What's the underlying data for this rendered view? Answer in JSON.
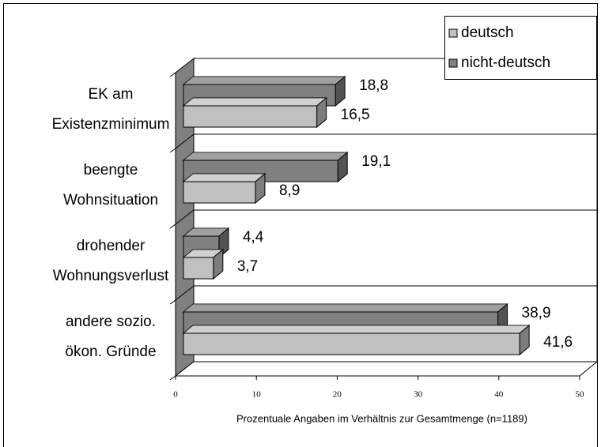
{
  "chart_data": {
    "type": "bar3d_horizontal",
    "categories": [
      [
        "EK am",
        "Existenzminimum"
      ],
      [
        "beengte",
        "Wohnsituation"
      ],
      [
        "drohender",
        "Wohnungsverlust"
      ],
      [
        "andere sozio.",
        "ökon. Gründe"
      ]
    ],
    "series": [
      {
        "name": "deutsch",
        "color": "#c0c0c0",
        "values": [
          16.5,
          8.9,
          3.7,
          41.6
        ],
        "value_labels": [
          "16,5",
          "8,9",
          "3,7",
          "41,6"
        ]
      },
      {
        "name": "nicht-deutsch",
        "color": "#808080",
        "values": [
          18.8,
          19.1,
          4.4,
          38.9
        ],
        "value_labels": [
          "18,8",
          "19,1",
          "4,4",
          "38,9"
        ]
      }
    ],
    "xlim": [
      0,
      50
    ],
    "xticks": [
      0,
      10,
      20,
      30,
      40,
      50
    ],
    "xlabel": "Prozentuale Angaben im Verhältnis zur Gesamtmenge (n=1189)",
    "legend": "top-right"
  }
}
